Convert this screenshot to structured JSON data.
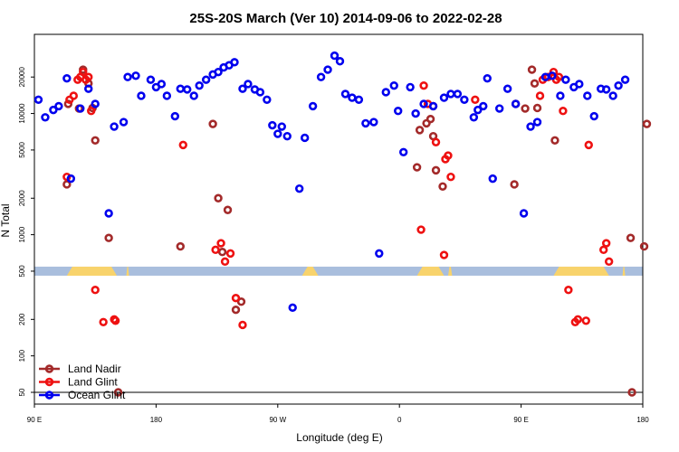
{
  "chart_data": {
    "type": "scatter",
    "title": "25S-20S March (Ver 10)   2014-09-06 to 2022-02-28",
    "xlabel": "Longitude (deg E)",
    "ylabel": "N Total",
    "xlim": [
      90,
      540
    ],
    "ylim": [
      40,
      45000
    ],
    "yscale": "log",
    "x_ticks": [
      {
        "value": 90,
        "label": "90 E"
      },
      {
        "value": 180,
        "label": "180"
      },
      {
        "value": 270,
        "label": "90 W"
      },
      {
        "value": 360,
        "label": "0"
      },
      {
        "value": 450,
        "label": "90 E"
      },
      {
        "value": 540,
        "label": "180"
      }
    ],
    "y_ticks": [
      {
        "value": 50,
        "label": "50"
      },
      {
        "value": 100,
        "label": "100"
      },
      {
        "value": 200,
        "label": "200"
      },
      {
        "value": 500,
        "label": "500"
      },
      {
        "value": 1000,
        "label": "1000"
      },
      {
        "value": 2000,
        "label": "2000"
      },
      {
        "value": 5000,
        "label": "5000"
      },
      {
        "value": 10000,
        "label": "10000"
      },
      {
        "value": 20000,
        "label": "20000"
      }
    ],
    "reference_line": 50,
    "land_band": {
      "y": 500,
      "ocean_color": "#a9bedd",
      "land_color": "#f8d36c",
      "land_ranges": [
        [
          114,
          151
        ],
        [
          158,
          160
        ],
        [
          288,
          300
        ],
        [
          373,
          393
        ],
        [
          396,
          399
        ],
        [
          474,
          515
        ],
        [
          525,
          527
        ]
      ]
    },
    "legend": {
      "position": "bottom-left"
    },
    "series": [
      {
        "name": "Land Nadir",
        "color": "#a32a2a",
        "x": [
          114,
          115,
          123,
          126,
          130,
          133,
          135,
          145,
          152,
          198,
          222,
          226,
          229,
          233,
          239,
          243,
          373,
          375,
          380,
          383,
          385,
          387,
          392,
          445,
          446,
          453,
          458,
          460,
          462,
          475,
          531,
          532,
          541,
          543
        ],
        "y": [
          2600,
          12000,
          11000,
          23000,
          17700,
          11100,
          6000,
          940,
          50,
          800,
          8200,
          2000,
          720,
          1600,
          240,
          280,
          3600,
          7300,
          8300,
          9000,
          6500,
          3400,
          2500,
          2600,
          12000,
          11000,
          23000,
          17700,
          11100,
          6000,
          940,
          50,
          800,
          8200
        ]
      },
      {
        "name": "Land Glint",
        "color": "#ee1111",
        "x": [
          114,
          116,
          119,
          122,
          124,
          126,
          128,
          130,
          132,
          135,
          141,
          149,
          150,
          200,
          224,
          228,
          231,
          235,
          239,
          244,
          376,
          378,
          381,
          385,
          387,
          393,
          394,
          396,
          398,
          416,
          464,
          466,
          470,
          474,
          476,
          478,
          481,
          485,
          490,
          492,
          498,
          500,
          511,
          513,
          515
        ],
        "y": [
          3000,
          13000,
          14000,
          19000,
          20000,
          22000,
          19000,
          20000,
          10500,
          350,
          190,
          200,
          195,
          5500,
          750,
          850,
          600,
          700,
          300,
          180,
          1100,
          17000,
          12000,
          11500,
          5800,
          680,
          4200,
          4500,
          3000,
          13000,
          14000,
          19000,
          20000,
          22000,
          19000,
          20000,
          10500,
          350,
          190,
          200,
          195,
          5500,
          750,
          850,
          600
        ]
      },
      {
        "name": "Ocean Glint",
        "color": "#0000ee",
        "x": [
          93,
          98,
          104,
          108,
          114,
          117,
          124,
          130,
          135,
          145,
          149,
          156,
          159,
          165,
          169,
          176,
          180,
          184,
          188,
          194,
          198,
          203,
          208,
          212,
          217,
          222,
          226,
          230,
          234,
          238,
          244,
          248,
          253,
          257,
          262,
          266,
          270,
          273,
          277,
          281,
          286,
          290,
          296,
          302,
          307,
          312,
          316,
          320,
          325,
          330,
          335,
          341,
          345,
          350,
          356,
          359,
          363,
          368,
          372,
          378,
          385,
          393,
          398,
          403,
          408,
          415,
          418,
          422,
          425,
          429,
          434,
          440,
          446,
          452,
          457,
          462,
          468,
          473,
          479,
          483,
          489,
          493,
          499,
          504,
          509,
          513,
          518,
          522,
          527
        ],
        "y": [
          13000,
          9300,
          10700,
          11500,
          19500,
          2900,
          11000,
          16000,
          12000,
          1500,
          7800,
          8500,
          20000,
          20500,
          14000,
          19000,
          16500,
          17500,
          14000,
          9500,
          16000,
          15800,
          14000,
          17000,
          19000,
          21000,
          22000,
          24000,
          25000,
          26500,
          16000,
          17500,
          15800,
          15000,
          13000,
          8000,
          6800,
          7800,
          6500,
          250,
          2400,
          6300,
          11500,
          20000,
          23000,
          30000,
          27000,
          14500,
          13500,
          13000,
          8300,
          8500,
          700,
          15000,
          17000,
          10500,
          4800,
          16500,
          10000,
          12000,
          11500,
          13500,
          14500,
          14500,
          13000,
          9300,
          10700,
          11500,
          19500,
          2900,
          11000,
          16000,
          12000,
          1500,
          7800,
          8500,
          20000,
          20500,
          14000,
          19000,
          16500,
          17500,
          14000,
          9500,
          16000,
          15800,
          14000,
          17000,
          19000
        ]
      }
    ]
  }
}
